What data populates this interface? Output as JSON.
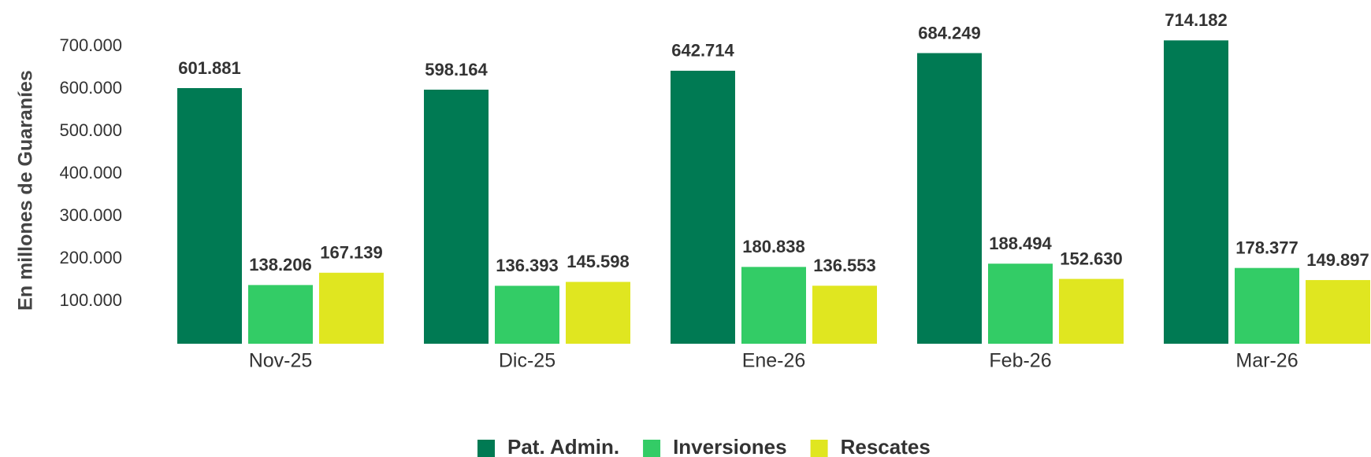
{
  "chart_data": {
    "type": "bar",
    "y_axis_label": "En millones de Guaraníes",
    "categories": [
      "Nov-25",
      "Dic-25",
      "Ene-26",
      "Feb-26",
      "Mar-26"
    ],
    "series": [
      {
        "name": "Pat. Admin.",
        "color": "#007a53",
        "values": [
          601881,
          598164,
          642714,
          684249,
          714182
        ],
        "value_labels": [
          "601.881",
          "598.164",
          "642.714",
          "684.249",
          "714.182"
        ]
      },
      {
        "name": "Inversiones",
        "color": "#33cc66",
        "values": [
          138206,
          136393,
          180838,
          188494,
          178377
        ],
        "value_labels": [
          "138.206",
          "136.393",
          "180.838",
          "188.494",
          "178.377"
        ]
      },
      {
        "name": "Rescates",
        "color": "#e0e620",
        "values": [
          167139,
          145598,
          136553,
          152630,
          149897
        ],
        "value_labels": [
          "167.139",
          "145.598",
          "136.553",
          "152.630",
          "149.897"
        ]
      }
    ],
    "ylim": [
      0,
      750000
    ],
    "yticks": [
      {
        "value": 100000,
        "label": "100.000"
      },
      {
        "value": 200000,
        "label": "200.000"
      },
      {
        "value": 300000,
        "label": "300.000"
      },
      {
        "value": 400000,
        "label": "400.000"
      },
      {
        "value": 500000,
        "label": "500.000"
      },
      {
        "value": 600000,
        "label": "600.000"
      },
      {
        "value": 700000,
        "label": "700.000"
      }
    ],
    "grid": false,
    "legend": "bottom"
  }
}
